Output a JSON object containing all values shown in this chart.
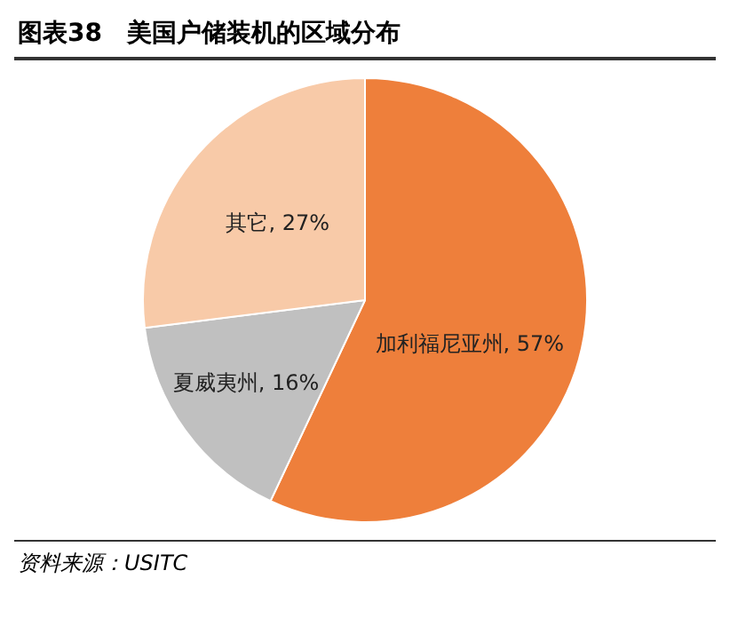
{
  "chart_data": {
    "type": "pie",
    "title": "图表38　美国户储装机的区域分布",
    "categories": [
      "加利福尼亚州",
      "夏威夷州",
      "其它"
    ],
    "values": [
      57,
      16,
      27
    ],
    "value_labels": [
      "57%",
      "16%",
      "27%"
    ],
    "colors": [
      "#ee7f3b",
      "#c0c0c0",
      "#f8caa8"
    ],
    "annotations": [
      "资料来源：USITC"
    ]
  }
}
